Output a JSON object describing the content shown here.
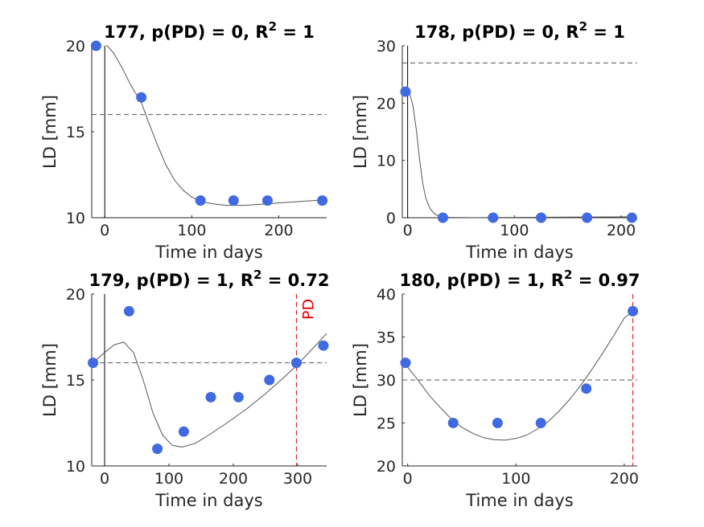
{
  "chart_data": [
    {
      "type": "scatter",
      "id": "177",
      "title": "177, p(PD) = 0, R",
      "title_sup": "2",
      "title_tail": " = 1",
      "xlabel": "Time in days",
      "ylabel": "LD [mm]",
      "xlim": [
        -15,
        255
      ],
      "ylim": [
        10,
        20
      ],
      "xticks": [
        0,
        100,
        200
      ],
      "xtick_labels": [
        "0",
        "100",
        "200"
      ],
      "yticks": [
        10,
        15,
        20
      ],
      "ytick_labels": [
        "10",
        "15",
        "20"
      ],
      "points": [
        {
          "x": -10,
          "y": 20
        },
        {
          "x": 42,
          "y": 17
        },
        {
          "x": 110,
          "y": 11
        },
        {
          "x": 148,
          "y": 11
        },
        {
          "x": 187,
          "y": 11
        },
        {
          "x": 250,
          "y": 11
        }
      ],
      "fit_curve": [
        [
          -10,
          20.2
        ],
        [
          0,
          20.15
        ],
        [
          10,
          19.6
        ],
        [
          20,
          18.7
        ],
        [
          30,
          17.7
        ],
        [
          42,
          16.7
        ],
        [
          50,
          15.6
        ],
        [
          60,
          14.3
        ],
        [
          70,
          13.1
        ],
        [
          80,
          12.2
        ],
        [
          90,
          11.6
        ],
        [
          100,
          11.2
        ],
        [
          110,
          10.95
        ],
        [
          125,
          10.8
        ],
        [
          140,
          10.72
        ],
        [
          160,
          10.72
        ],
        [
          180,
          10.78
        ],
        [
          200,
          10.86
        ],
        [
          220,
          10.93
        ],
        [
          240,
          11.0
        ],
        [
          255,
          11.05
        ]
      ],
      "baseline_vline_x": 0,
      "threshold_y": 16,
      "pd_vline_x": null,
      "pd_label": ""
    },
    {
      "type": "scatter",
      "id": "178",
      "title": "178, p(PD) = 0, R",
      "title_sup": "2",
      "title_tail": " = 1",
      "xlabel": "Time in days",
      "ylabel": "LD [mm]",
      "xlim": [
        -5,
        215
      ],
      "ylim": [
        0,
        30
      ],
      "xticks": [
        0,
        100,
        200
      ],
      "xtick_labels": [
        "0",
        "100",
        "200"
      ],
      "yticks": [
        0,
        10,
        20,
        30
      ],
      "ytick_labels": [
        "0",
        "10",
        "20",
        "30"
      ],
      "points": [
        {
          "x": -2,
          "y": 22
        },
        {
          "x": 33,
          "y": 0
        },
        {
          "x": 80,
          "y": 0
        },
        {
          "x": 125,
          "y": 0
        },
        {
          "x": 168,
          "y": 0
        },
        {
          "x": 210,
          "y": 0
        }
      ],
      "fit_curve": [
        [
          -2,
          22.3
        ],
        [
          2,
          21.6
        ],
        [
          5,
          19.5
        ],
        [
          8,
          15.5
        ],
        [
          11,
          10.5
        ],
        [
          14,
          6.2
        ],
        [
          17,
          3.4
        ],
        [
          21,
          1.6
        ],
        [
          25,
          0.7
        ],
        [
          30,
          0.2
        ],
        [
          40,
          0.05
        ],
        [
          60,
          0.02
        ],
        [
          100,
          0.05
        ],
        [
          150,
          0.1
        ],
        [
          210,
          0.15
        ]
      ],
      "baseline_vline_x": 0,
      "threshold_y": 27,
      "pd_vline_x": null,
      "pd_label": ""
    },
    {
      "type": "scatter",
      "id": "179",
      "title": "179, p(PD) = 1, R",
      "title_sup": "2",
      "title_tail": " = 0.72",
      "xlabel": "Time in days",
      "ylabel": "LD [mm]",
      "xlim": [
        -20,
        345
      ],
      "ylim": [
        10,
        20
      ],
      "xticks": [
        0,
        100,
        200,
        300
      ],
      "xtick_labels": [
        "0",
        "100",
        "200",
        "300"
      ],
      "yticks": [
        10,
        15,
        20
      ],
      "ytick_labels": [
        "10",
        "15",
        "20"
      ],
      "points": [
        {
          "x": -18,
          "y": 16
        },
        {
          "x": 38,
          "y": 19
        },
        {
          "x": 82,
          "y": 11
        },
        {
          "x": 123,
          "y": 12
        },
        {
          "x": 165,
          "y": 14
        },
        {
          "x": 208,
          "y": 14
        },
        {
          "x": 256,
          "y": 15
        },
        {
          "x": 298,
          "y": 16
        },
        {
          "x": 340,
          "y": 17
        }
      ],
      "fit_curve": [
        [
          -18,
          16.0
        ],
        [
          0,
          16.6
        ],
        [
          15,
          17.05
        ],
        [
          30,
          17.2
        ],
        [
          45,
          16.6
        ],
        [
          60,
          15.0
        ],
        [
          75,
          13.1
        ],
        [
          90,
          11.8
        ],
        [
          105,
          11.2
        ],
        [
          120,
          11.1
        ],
        [
          140,
          11.3
        ],
        [
          160,
          11.75
        ],
        [
          190,
          12.5
        ],
        [
          220,
          13.3
        ],
        [
          250,
          14.2
        ],
        [
          280,
          15.2
        ],
        [
          300,
          15.9
        ],
        [
          320,
          16.7
        ],
        [
          345,
          17.7
        ]
      ],
      "baseline_vline_x": 0,
      "threshold_y": 16,
      "pd_vline_x": 298,
      "pd_label": "PD"
    },
    {
      "type": "scatter",
      "id": "180",
      "title": "180, p(PD) = 1, R",
      "title_sup": "2",
      "title_tail": " = 0.97",
      "xlabel": "Time in days",
      "ylabel": "LD [mm]",
      "xlim": [
        -5,
        212
      ],
      "ylim": [
        20,
        40
      ],
      "xticks": [
        0,
        100,
        200
      ],
      "xtick_labels": [
        "0",
        "100",
        "200"
      ],
      "yticks": [
        20,
        25,
        30,
        35,
        40
      ],
      "ytick_labels": [
        "20",
        "25",
        "30",
        "35",
        "40"
      ],
      "points": [
        {
          "x": -2,
          "y": 32
        },
        {
          "x": 42,
          "y": 25
        },
        {
          "x": 83,
          "y": 25
        },
        {
          "x": 123,
          "y": 25
        },
        {
          "x": 165,
          "y": 29
        },
        {
          "x": 208,
          "y": 38
        }
      ],
      "fit_curve": [
        [
          -2,
          31.8
        ],
        [
          10,
          29.9
        ],
        [
          20,
          28.2
        ],
        [
          30,
          26.8
        ],
        [
          40,
          25.5
        ],
        [
          50,
          24.5
        ],
        [
          60,
          23.8
        ],
        [
          70,
          23.3
        ],
        [
          80,
          23.05
        ],
        [
          90,
          23.0
        ],
        [
          100,
          23.2
        ],
        [
          110,
          23.6
        ],
        [
          120,
          24.3
        ],
        [
          130,
          25.2
        ],
        [
          140,
          26.4
        ],
        [
          150,
          27.8
        ],
        [
          160,
          29.4
        ],
        [
          170,
          31.2
        ],
        [
          180,
          33.1
        ],
        [
          190,
          35.1
        ],
        [
          200,
          37.2
        ],
        [
          208,
          38.0
        ]
      ],
      "baseline_vline_x": null,
      "threshold_y": 30,
      "pd_vline_x": 208,
      "pd_label": ""
    }
  ],
  "colors": {
    "marker": "#4169e1",
    "fit_line": "#555555",
    "threshold": "#555555",
    "pd_line": "#e00000",
    "axis": "#262626"
  }
}
